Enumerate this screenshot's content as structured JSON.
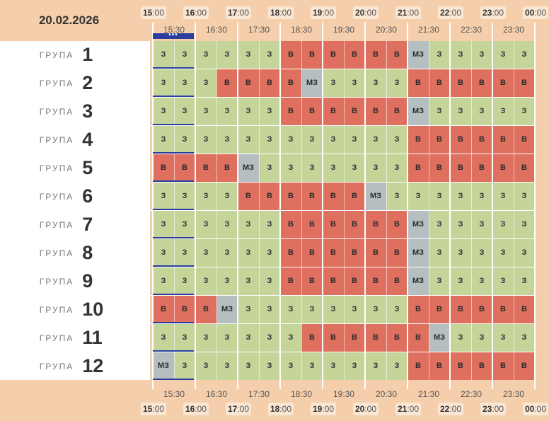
{
  "date": "20.02.2026",
  "hours": [
    {
      "h": "15",
      "m": ":00"
    },
    {
      "h": "16",
      "m": ":00"
    },
    {
      "h": "17",
      "m": ":00"
    },
    {
      "h": "18",
      "m": ":00"
    },
    {
      "h": "19",
      "m": ":00"
    },
    {
      "h": "20",
      "m": ":00"
    },
    {
      "h": "21",
      "m": ":00"
    },
    {
      "h": "22",
      "m": ":00"
    },
    {
      "h": "23",
      "m": ":00"
    },
    {
      "h": "00",
      "m": ":00"
    }
  ],
  "half_hours": [
    "15:30",
    "16:30",
    "17:30",
    "18:30",
    "19:30",
    "20:30",
    "21:30",
    "22:30",
    "23:30"
  ],
  "group_word": "ГРУПА",
  "groups": [
    {
      "num": "1",
      "slots": [
        "З",
        "З",
        "З",
        "З",
        "З",
        "З",
        "В",
        "В",
        "В",
        "В",
        "В",
        "В",
        "МЗ",
        "З",
        "З",
        "З",
        "З",
        "З"
      ]
    },
    {
      "num": "2",
      "slots": [
        "З",
        "З",
        "З",
        "В",
        "В",
        "В",
        "В",
        "МЗ",
        "З",
        "З",
        "З",
        "З",
        "В",
        "В",
        "В",
        "В",
        "В",
        "В"
      ]
    },
    {
      "num": "3",
      "slots": [
        "З",
        "З",
        "З",
        "З",
        "З",
        "З",
        "В",
        "В",
        "В",
        "В",
        "В",
        "В",
        "МЗ",
        "З",
        "З",
        "З",
        "З",
        "З"
      ]
    },
    {
      "num": "4",
      "slots": [
        "З",
        "З",
        "З",
        "З",
        "З",
        "З",
        "З",
        "З",
        "З",
        "З",
        "З",
        "З",
        "В",
        "В",
        "В",
        "В",
        "В",
        "В"
      ]
    },
    {
      "num": "5",
      "slots": [
        "В",
        "В",
        "В",
        "В",
        "МЗ",
        "З",
        "З",
        "З",
        "З",
        "З",
        "З",
        "З",
        "В",
        "В",
        "В",
        "В",
        "В",
        "В"
      ]
    },
    {
      "num": "6",
      "slots": [
        "З",
        "З",
        "З",
        "З",
        "В",
        "В",
        "В",
        "В",
        "В",
        "В",
        "МЗ",
        "З",
        "З",
        "З",
        "З",
        "З",
        "З",
        "З"
      ]
    },
    {
      "num": "7",
      "slots": [
        "З",
        "З",
        "З",
        "З",
        "З",
        "З",
        "В",
        "В",
        "В",
        "В",
        "В",
        "В",
        "МЗ",
        "З",
        "З",
        "З",
        "З",
        "З"
      ]
    },
    {
      "num": "8",
      "slots": [
        "З",
        "З",
        "З",
        "З",
        "З",
        "З",
        "В",
        "В",
        "В",
        "В",
        "В",
        "В",
        "МЗ",
        "З",
        "З",
        "З",
        "З",
        "З"
      ]
    },
    {
      "num": "9",
      "slots": [
        "З",
        "З",
        "З",
        "З",
        "З",
        "З",
        "В",
        "В",
        "В",
        "В",
        "В",
        "В",
        "МЗ",
        "З",
        "З",
        "З",
        "З",
        "З"
      ]
    },
    {
      "num": "10",
      "slots": [
        "В",
        "В",
        "В",
        "МЗ",
        "З",
        "З",
        "З",
        "З",
        "З",
        "З",
        "З",
        "З",
        "В",
        "В",
        "В",
        "В",
        "В",
        "В"
      ]
    },
    {
      "num": "11",
      "slots": [
        "З",
        "З",
        "З",
        "З",
        "З",
        "З",
        "З",
        "В",
        "В",
        "В",
        "В",
        "В",
        "В",
        "МЗ",
        "З",
        "З",
        "З",
        "З"
      ]
    },
    {
      "num": "12",
      "slots": [
        "МЗ",
        "З",
        "З",
        "З",
        "З",
        "З",
        "З",
        "З",
        "З",
        "З",
        "З",
        "З",
        "В",
        "В",
        "В",
        "В",
        "В",
        "В"
      ]
    }
  ],
  "colors": {
    "on": "#c5d59a",
    "off": "#df6f5e",
    "maybe": "#b5bfc1",
    "background": "#f5cfac",
    "current_marker": "#2b3e9e"
  },
  "current_marker_dots": "•••"
}
